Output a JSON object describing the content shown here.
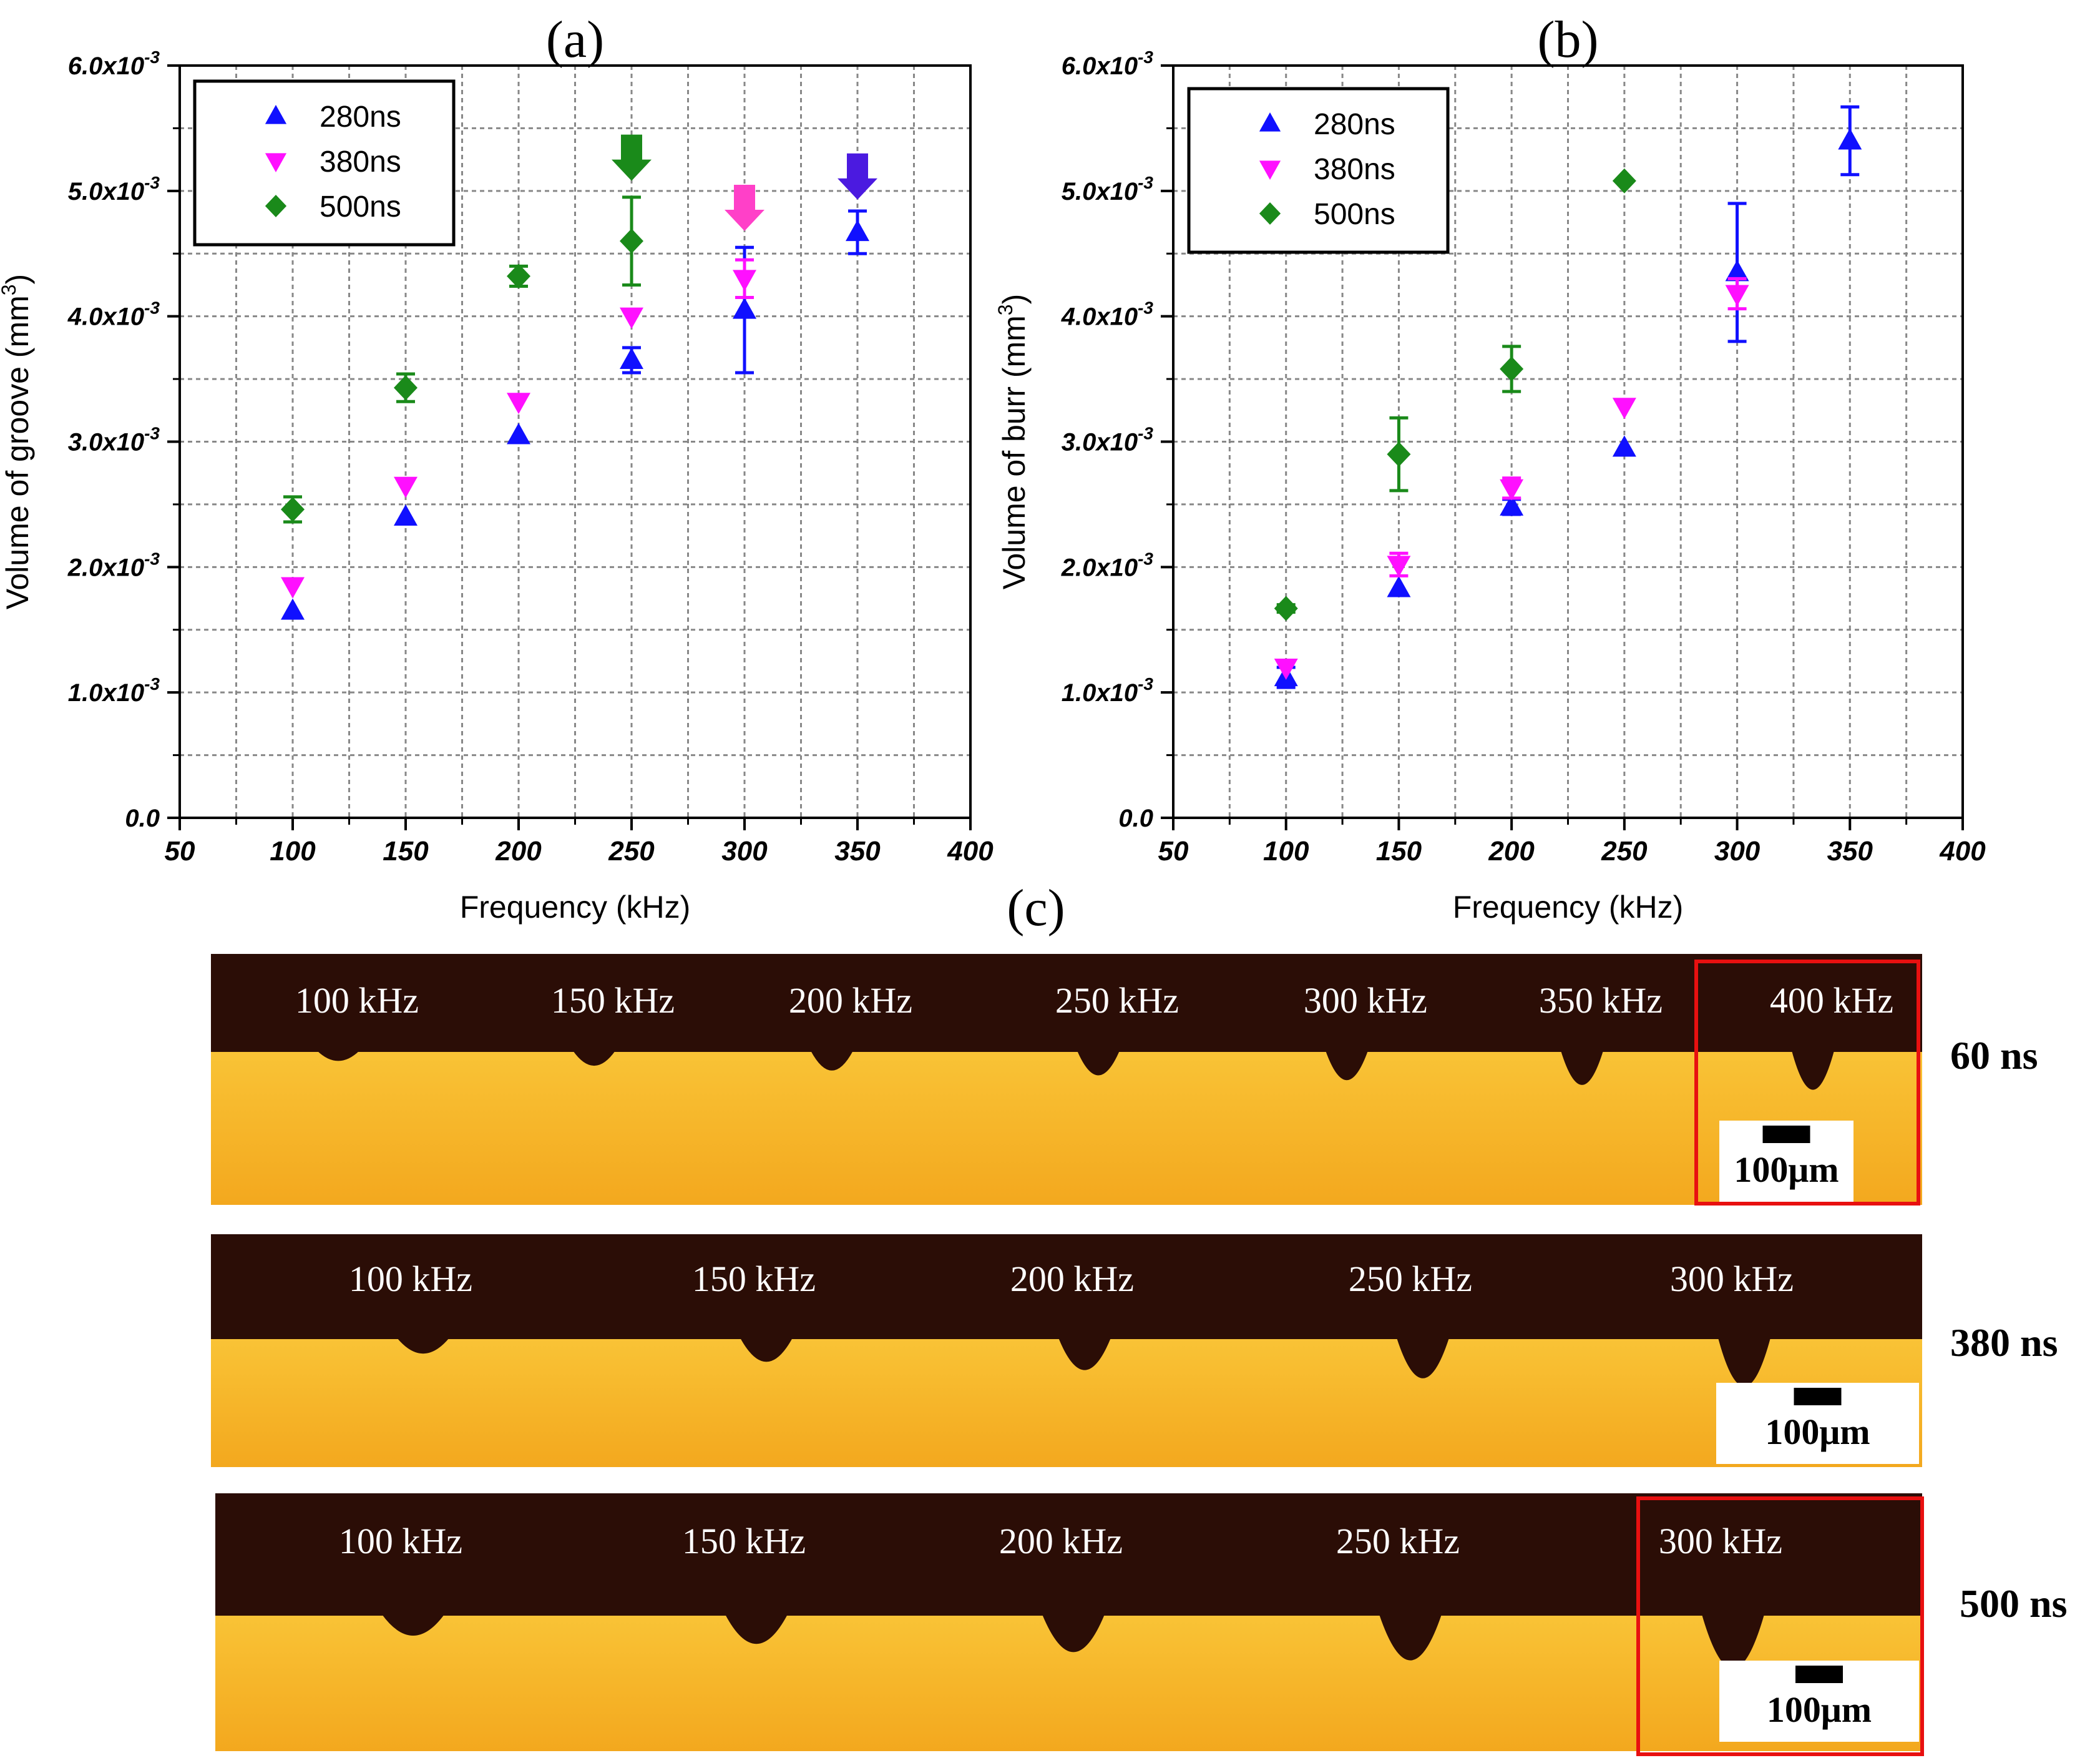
{
  "chart_data": [
    {
      "type": "scatter",
      "panel_label": "(a)",
      "xlabel": "Frequency (kHz)",
      "ylabel": "Volume of groove (mm",
      "ylabel_sup": "3",
      "ylabel_tail": ")",
      "xlim": [
        50,
        400
      ],
      "ylim": [
        0,
        0.006
      ],
      "x_ticks": [
        50,
        100,
        150,
        200,
        250,
        300,
        350,
        400
      ],
      "y_ticks": [
        {
          "value": 0,
          "mantissa": "0.0",
          "exp": ""
        },
        {
          "value": 0.001,
          "mantissa": "1.0x10",
          "exp": "-3"
        },
        {
          "value": 0.002,
          "mantissa": "2.0x10",
          "exp": "-3"
        },
        {
          "value": 0.003,
          "mantissa": "3.0x10",
          "exp": "-3"
        },
        {
          "value": 0.004,
          "mantissa": "4.0x10",
          "exp": "-3"
        },
        {
          "value": 0.005,
          "mantissa": "5.0x10",
          "exp": "-3"
        },
        {
          "value": 0.006,
          "mantissa": "6.0x10",
          "exp": "-3"
        }
      ],
      "grid": true,
      "legend_position": "top-left",
      "series": [
        {
          "name": "280ns",
          "marker": "triangle-up",
          "color": "#1010ff",
          "x": [
            100,
            150,
            200,
            250,
            300,
            350
          ],
          "y": [
            0.00165,
            0.0024,
            0.00305,
            0.00365,
            0.00405,
            0.00467
          ],
          "err": [
            0,
            0,
            0,
            0.0001,
            0.0005,
            0.00017
          ]
        },
        {
          "name": "380ns",
          "marker": "triangle-down",
          "color": "#ff10ff",
          "x": [
            100,
            150,
            200,
            250,
            300
          ],
          "y": [
            0.00185,
            0.00265,
            0.00332,
            0.004,
            0.0043
          ],
          "err": [
            0,
            0,
            0,
            0,
            0.00015
          ]
        },
        {
          "name": "500ns",
          "marker": "diamond",
          "color": "#1a8a1a",
          "x": [
            100,
            150,
            200,
            250
          ],
          "y": [
            0.00246,
            0.00343,
            0.00432,
            0.0046
          ],
          "err": [
            0.0001,
            0.00011,
            8e-05,
            0.00035
          ]
        }
      ],
      "annotations": [
        {
          "type": "arrow-down",
          "x": 250,
          "y": 0.00525,
          "color": "#1a8a1a"
        },
        {
          "type": "arrow-down",
          "x": 300,
          "y": 0.00485,
          "color": "#ff40c8"
        },
        {
          "type": "arrow-down",
          "x": 350,
          "y": 0.0051,
          "color": "#4b1ae0"
        }
      ]
    },
    {
      "type": "scatter",
      "panel_label": "(b)",
      "xlabel": "Frequency (kHz)",
      "ylabel": "Volume of burr (mm",
      "ylabel_sup": "3",
      "ylabel_tail": ")",
      "xlim": [
        50,
        400
      ],
      "ylim": [
        0,
        0.006
      ],
      "x_ticks": [
        50,
        100,
        150,
        200,
        250,
        300,
        350,
        400
      ],
      "y_ticks": [
        {
          "value": 0,
          "mantissa": "0.0",
          "exp": ""
        },
        {
          "value": 0.001,
          "mantissa": "1.0x10",
          "exp": "-3"
        },
        {
          "value": 0.002,
          "mantissa": "2.0x10",
          "exp": "-3"
        },
        {
          "value": 0.003,
          "mantissa": "3.0x10",
          "exp": "-3"
        },
        {
          "value": 0.004,
          "mantissa": "4.0x10",
          "exp": "-3"
        },
        {
          "value": 0.005,
          "mantissa": "5.0x10",
          "exp": "-3"
        },
        {
          "value": 0.006,
          "mantissa": "6.0x10",
          "exp": "-3"
        }
      ],
      "grid": true,
      "legend_position": "top-left",
      "series": [
        {
          "name": "280ns",
          "marker": "triangle-up",
          "color": "#1010ff",
          "x": [
            100,
            150,
            200,
            250,
            300,
            350
          ],
          "y": [
            0.00112,
            0.00183,
            0.00248,
            0.00295,
            0.00435,
            0.0054
          ],
          "err": [
            8e-05,
            0,
            6e-05,
            0,
            0.00055,
            0.00027
          ]
        },
        {
          "name": "380ns",
          "marker": "triangle-down",
          "color": "#ff10ff",
          "x": [
            100,
            150,
            200,
            250,
            300
          ],
          "y": [
            0.0012,
            0.00202,
            0.00263,
            0.00328,
            0.00418
          ],
          "err": [
            0,
            9e-05,
            8e-05,
            0,
            0.00012
          ]
        },
        {
          "name": "500ns",
          "marker": "diamond",
          "color": "#1a8a1a",
          "x": [
            100,
            150,
            200,
            250
          ],
          "y": [
            0.00167,
            0.0029,
            0.00358,
            0.00508
          ],
          "err": [
            3e-05,
            0.00029,
            0.00018,
            0
          ]
        }
      ]
    }
  ],
  "panel_c": {
    "label": "(c)",
    "rows": [
      {
        "pulse": "60 ns",
        "frequencies": [
          "100 kHz",
          "150 kHz",
          "200 kHz",
          "250 kHz",
          "300 kHz",
          "350 kHz",
          "400 kHz"
        ],
        "scale_bar": "100μm",
        "highlight": "400 kHz"
      },
      {
        "pulse": "380 ns",
        "frequencies": [
          "100 kHz",
          "150 kHz",
          "200 kHz",
          "250 kHz",
          "300 kHz"
        ],
        "scale_bar": "100μm",
        "highlight": ""
      },
      {
        "pulse": "500 ns",
        "frequencies": [
          "100 kHz",
          "150 kHz",
          "200 kHz",
          "250 kHz",
          "300 kHz"
        ],
        "scale_bar": "100μm",
        "highlight": "300 kHz"
      }
    ]
  }
}
